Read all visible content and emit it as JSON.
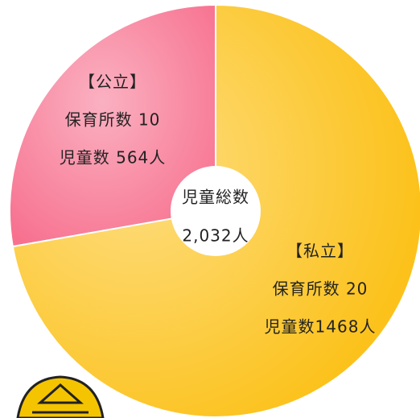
{
  "chart_data": {
    "type": "pie",
    "categories": [
      "【公立】",
      "【私立】"
    ],
    "facility_labels": [
      "保育所数 10",
      "保育所数 20"
    ],
    "values": [
      564,
      1468
    ],
    "value_labels": [
      "児童数 564人",
      "児童数1468人"
    ],
    "colors": [
      "#f7718f",
      "#fcc21b"
    ],
    "center_label": [
      "児童総数",
      "2,032人"
    ]
  }
}
